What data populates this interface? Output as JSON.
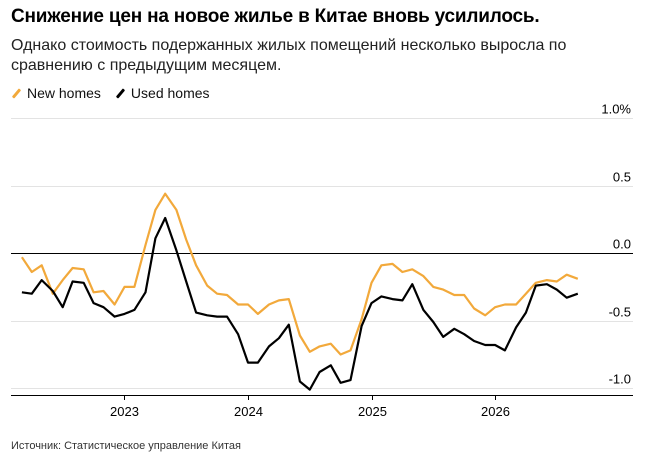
{
  "title": "Снижение цен на новое жилье в Китае вновь усилилось.",
  "subtitle": "Однако стоимость подержанных жилых помещений несколько выросла по сравнению с предыдущим месяцем.",
  "source": "Источник: Статистическое управление Китая",
  "chart_data": {
    "type": "line",
    "grid": "horizontal",
    "ylim": [
      -1.05,
      1.0
    ],
    "xlim": [
      2022.13,
      2026.72
    ],
    "y_ticks": [
      1.0,
      0.5,
      0.0,
      -0.5,
      -1.0
    ],
    "y_tick_labels": [
      "1.0%",
      "0.5",
      "0.0",
      "-0.5",
      "-1.0"
    ],
    "x_ticks": [
      2023,
      2024,
      2025,
      2026
    ],
    "x_tick_labels": [
      "2023",
      "2024",
      "2025",
      "2026"
    ],
    "legend": "top-left",
    "series": [
      {
        "name": "New homes",
        "color": "#f2a93b",
        "points": [
          [
            2022.17,
            -0.03
          ],
          [
            2022.25,
            -0.14
          ],
          [
            2022.33,
            -0.09
          ],
          [
            2022.42,
            -0.3
          ],
          [
            2022.5,
            -0.2
          ],
          [
            2022.58,
            -0.11
          ],
          [
            2022.67,
            -0.12
          ],
          [
            2022.75,
            -0.29
          ],
          [
            2022.83,
            -0.28
          ],
          [
            2022.92,
            -0.38
          ],
          [
            2023.0,
            -0.25
          ],
          [
            2023.08,
            -0.25
          ],
          [
            2023.17,
            0.06
          ],
          [
            2023.25,
            0.32
          ],
          [
            2023.33,
            0.44
          ],
          [
            2023.42,
            0.32
          ],
          [
            2023.5,
            0.1
          ],
          [
            2023.58,
            -0.09
          ],
          [
            2023.67,
            -0.24
          ],
          [
            2023.75,
            -0.3
          ],
          [
            2023.83,
            -0.31
          ],
          [
            2023.92,
            -0.38
          ],
          [
            2024.0,
            -0.38
          ],
          [
            2024.08,
            -0.45
          ],
          [
            2024.17,
            -0.38
          ],
          [
            2024.25,
            -0.35
          ],
          [
            2024.33,
            -0.34
          ],
          [
            2024.42,
            -0.61
          ],
          [
            2024.5,
            -0.73
          ],
          [
            2024.58,
            -0.69
          ],
          [
            2024.67,
            -0.67
          ],
          [
            2024.75,
            -0.75
          ],
          [
            2024.83,
            -0.72
          ],
          [
            2024.92,
            -0.49
          ],
          [
            2025.0,
            -0.22
          ],
          [
            2025.08,
            -0.09
          ],
          [
            2025.17,
            -0.08
          ],
          [
            2025.25,
            -0.14
          ],
          [
            2025.33,
            -0.12
          ],
          [
            2025.42,
            -0.17
          ],
          [
            2025.5,
            -0.25
          ],
          [
            2025.58,
            -0.27
          ],
          [
            2025.67,
            -0.31
          ],
          [
            2025.75,
            -0.31
          ],
          [
            2025.83,
            -0.41
          ],
          [
            2025.92,
            -0.46
          ],
          [
            2026.0,
            -0.4
          ],
          [
            2026.08,
            -0.38
          ],
          [
            2026.17,
            -0.38
          ],
          [
            2026.25,
            -0.3
          ],
          [
            2026.33,
            -0.22
          ],
          [
            2026.42,
            -0.2
          ],
          [
            2026.5,
            -0.21
          ],
          [
            2026.58,
            -0.16
          ],
          [
            2026.67,
            -0.19
          ]
        ]
      },
      {
        "name": "Used homes",
        "color": "#000000",
        "points": [
          [
            2022.17,
            -0.29
          ],
          [
            2022.25,
            -0.3
          ],
          [
            2022.33,
            -0.2
          ],
          [
            2022.42,
            -0.28
          ],
          [
            2022.5,
            -0.4
          ],
          [
            2022.58,
            -0.21
          ],
          [
            2022.67,
            -0.22
          ],
          [
            2022.75,
            -0.37
          ],
          [
            2022.83,
            -0.4
          ],
          [
            2022.92,
            -0.47
          ],
          [
            2023.0,
            -0.45
          ],
          [
            2023.08,
            -0.42
          ],
          [
            2023.17,
            -0.29
          ],
          [
            2023.25,
            0.11
          ],
          [
            2023.33,
            0.26
          ],
          [
            2023.42,
            0.02
          ],
          [
            2023.5,
            -0.21
          ],
          [
            2023.58,
            -0.44
          ],
          [
            2023.67,
            -0.46
          ],
          [
            2023.75,
            -0.47
          ],
          [
            2023.83,
            -0.47
          ],
          [
            2023.92,
            -0.6
          ],
          [
            2024.0,
            -0.81
          ],
          [
            2024.08,
            -0.81
          ],
          [
            2024.17,
            -0.69
          ],
          [
            2024.25,
            -0.63
          ],
          [
            2024.33,
            -0.53
          ],
          [
            2024.42,
            -0.95
          ],
          [
            2024.5,
            -1.01
          ],
          [
            2024.58,
            -0.88
          ],
          [
            2024.67,
            -0.83
          ],
          [
            2024.75,
            -0.96
          ],
          [
            2024.83,
            -0.94
          ],
          [
            2024.92,
            -0.54
          ],
          [
            2025.0,
            -0.37
          ],
          [
            2025.08,
            -0.32
          ],
          [
            2025.17,
            -0.34
          ],
          [
            2025.25,
            -0.35
          ],
          [
            2025.33,
            -0.23
          ],
          [
            2025.42,
            -0.42
          ],
          [
            2025.5,
            -0.51
          ],
          [
            2025.58,
            -0.62
          ],
          [
            2025.67,
            -0.56
          ],
          [
            2025.75,
            -0.6
          ],
          [
            2025.83,
            -0.65
          ],
          [
            2025.92,
            -0.68
          ],
          [
            2026.0,
            -0.68
          ],
          [
            2026.08,
            -0.72
          ],
          [
            2026.17,
            -0.55
          ],
          [
            2026.25,
            -0.44
          ],
          [
            2026.33,
            -0.24
          ],
          [
            2026.42,
            -0.23
          ],
          [
            2026.5,
            -0.27
          ],
          [
            2026.58,
            -0.33
          ],
          [
            2026.67,
            -0.3
          ]
        ]
      }
    ]
  }
}
